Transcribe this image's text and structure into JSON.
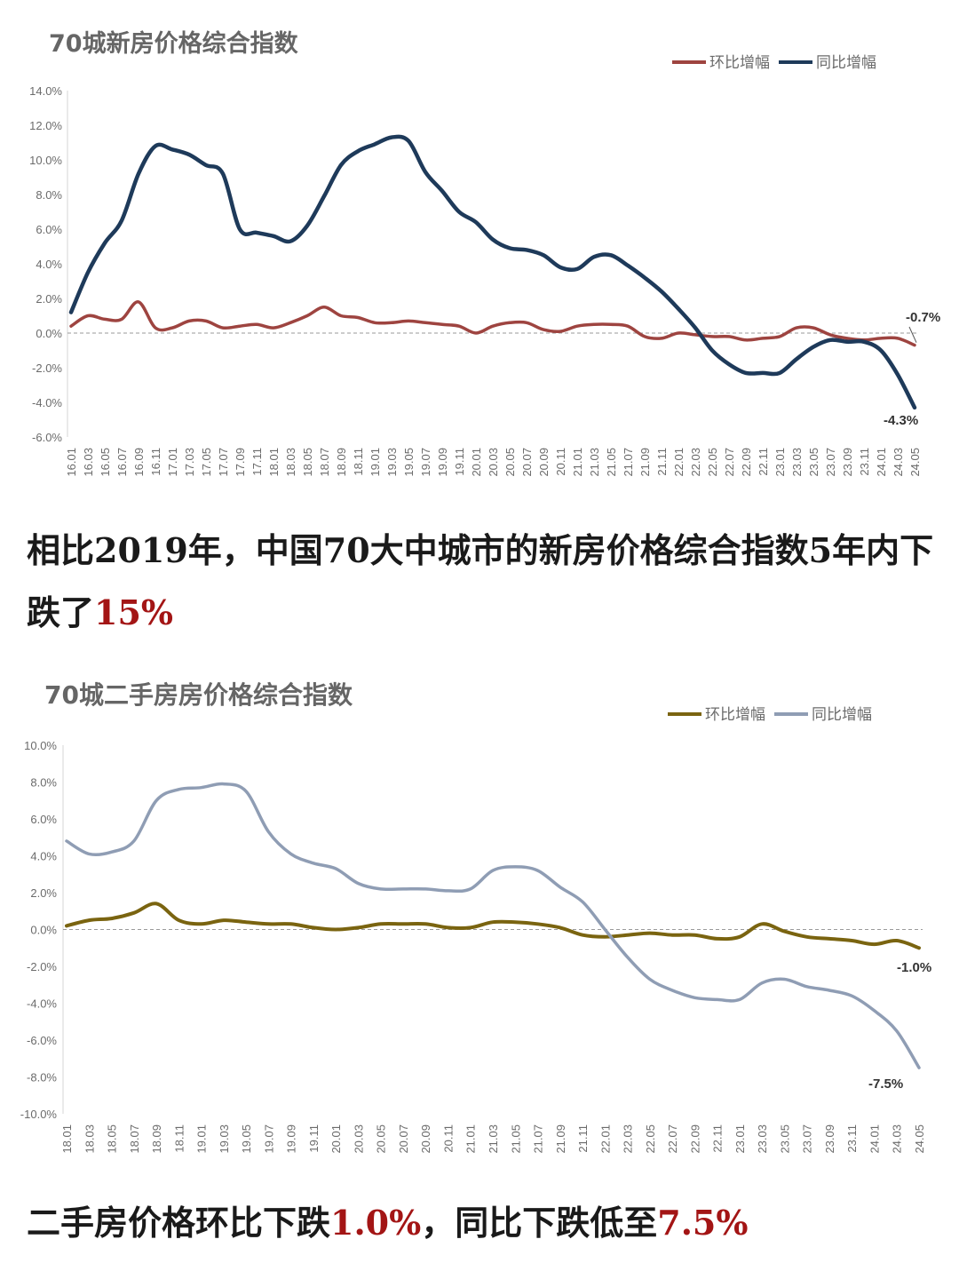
{
  "chart_data": [
    {
      "type": "line",
      "title": "70城新房价格综合指数",
      "x": [
        "16.01",
        "16.03",
        "16.05",
        "16.07",
        "16.09",
        "16.11",
        "17.01",
        "17.03",
        "17.05",
        "17.07",
        "17.09",
        "17.11",
        "18.01",
        "18.03",
        "18.05",
        "18.07",
        "18.09",
        "18.11",
        "19.01",
        "19.03",
        "19.05",
        "19.07",
        "19.09",
        "19.11",
        "20.01",
        "20.03",
        "20.05",
        "20.07",
        "20.09",
        "20.11",
        "21.01",
        "21.03",
        "21.05",
        "21.07",
        "21.09",
        "21.11",
        "22.01",
        "22.03",
        "22.05",
        "22.07",
        "22.09",
        "22.11",
        "23.01",
        "23.03",
        "23.05",
        "23.07",
        "23.09",
        "23.11",
        "24.01",
        "24.03",
        "24.05"
      ],
      "y_ticks": [
        "14.0%",
        "12.0%",
        "10.0%",
        "8.0%",
        "6.0%",
        "4.0%",
        "2.0%",
        "0.0%",
        "-2.0%",
        "-4.0%",
        "-6.0%"
      ],
      "ylim": [
        -6,
        14
      ],
      "series": [
        {
          "name": "环比增幅",
          "color": "#9e4440",
          "values": [
            0.4,
            1.0,
            0.8,
            0.8,
            1.8,
            0.3,
            0.3,
            0.7,
            0.7,
            0.3,
            0.4,
            0.5,
            0.3,
            0.6,
            1.0,
            1.5,
            1.0,
            0.9,
            0.6,
            0.6,
            0.7,
            0.6,
            0.5,
            0.4,
            0.0,
            0.4,
            0.6,
            0.6,
            0.2,
            0.1,
            0.4,
            0.5,
            0.5,
            0.4,
            -0.2,
            -0.3,
            0.0,
            -0.1,
            -0.2,
            -0.2,
            -0.4,
            -0.3,
            -0.2,
            0.3,
            0.3,
            -0.1,
            -0.3,
            -0.4,
            -0.3,
            -0.3,
            -0.7
          ]
        },
        {
          "name": "同比增幅",
          "color": "#1e3a5a",
          "values": [
            1.2,
            3.5,
            5.2,
            6.5,
            9.2,
            10.8,
            10.6,
            10.3,
            9.7,
            9.2,
            6.0,
            5.8,
            5.6,
            5.3,
            6.2,
            7.9,
            9.7,
            10.5,
            10.9,
            11.3,
            11.1,
            9.3,
            8.2,
            7.0,
            6.4,
            5.4,
            4.9,
            4.8,
            4.5,
            3.8,
            3.7,
            4.4,
            4.5,
            3.9,
            3.2,
            2.4,
            1.4,
            0.3,
            -1.0,
            -1.8,
            -2.3,
            -2.3,
            -2.3,
            -1.5,
            -0.8,
            -0.4,
            -0.5,
            -0.5,
            -1.0,
            -2.4,
            -4.3
          ]
        }
      ],
      "annotations": [
        "-0.7%",
        "-4.3%"
      ]
    },
    {
      "type": "line",
      "title": "70城二手房房价格综合指数",
      "x": [
        "18.01",
        "18.03",
        "18.05",
        "18.07",
        "18.09",
        "18.11",
        "19.01",
        "19.03",
        "19.05",
        "19.07",
        "19.09",
        "19.11",
        "20.01",
        "20.03",
        "20.05",
        "20.07",
        "20.09",
        "20.11",
        "21.01",
        "21.03",
        "21.05",
        "21.07",
        "21.09",
        "21.11",
        "22.01",
        "22.03",
        "22.05",
        "22.07",
        "22.09",
        "22.11",
        "23.01",
        "23.03",
        "23.05",
        "23.07",
        "23.09",
        "23.11",
        "24.01",
        "24.03",
        "24.05"
      ],
      "y_ticks": [
        "10.0%",
        "8.0%",
        "6.0%",
        "4.0%",
        "2.0%",
        "0.0%",
        "-2.0%",
        "-4.0%",
        "-6.0%",
        "-8.0%",
        "-10.0%"
      ],
      "ylim": [
        -10,
        10
      ],
      "series": [
        {
          "name": "环比增幅",
          "color": "#7a6410",
          "values": [
            0.2,
            0.5,
            0.6,
            0.9,
            1.4,
            0.5,
            0.3,
            0.5,
            0.4,
            0.3,
            0.3,
            0.1,
            0.0,
            0.1,
            0.3,
            0.3,
            0.3,
            0.1,
            0.1,
            0.4,
            0.4,
            0.3,
            0.1,
            -0.3,
            -0.4,
            -0.3,
            -0.2,
            -0.3,
            -0.3,
            -0.5,
            -0.4,
            0.3,
            -0.1,
            -0.4,
            -0.5,
            -0.6,
            -0.8,
            -0.6,
            -1.0
          ]
        },
        {
          "name": "同比增幅",
          "color": "#8f9db4",
          "values": [
            4.8,
            4.1,
            4.2,
            4.8,
            7.0,
            7.6,
            7.7,
            7.9,
            7.5,
            5.3,
            4.1,
            3.6,
            3.3,
            2.5,
            2.2,
            2.2,
            2.2,
            2.1,
            2.2,
            3.2,
            3.4,
            3.2,
            2.3,
            1.5,
            0.0,
            -1.5,
            -2.7,
            -3.3,
            -3.7,
            -3.8,
            -3.8,
            -2.9,
            -2.7,
            -3.1,
            -3.3,
            -3.6,
            -4.4,
            -5.5,
            -7.5
          ]
        }
      ],
      "annotations": [
        "-1.0%",
        "-7.5%"
      ]
    }
  ],
  "captions": {
    "caption1_text": "相比2019年，中国70大中城市的新房价格综合指数5年内下跌了",
    "caption1_highlight": "15%",
    "caption2_part1": "二手房价格环比下跌",
    "caption2_highlight1": "1.0%",
    "caption2_part2": "，同比下跌低至",
    "caption2_highlight2": "7.5%"
  }
}
